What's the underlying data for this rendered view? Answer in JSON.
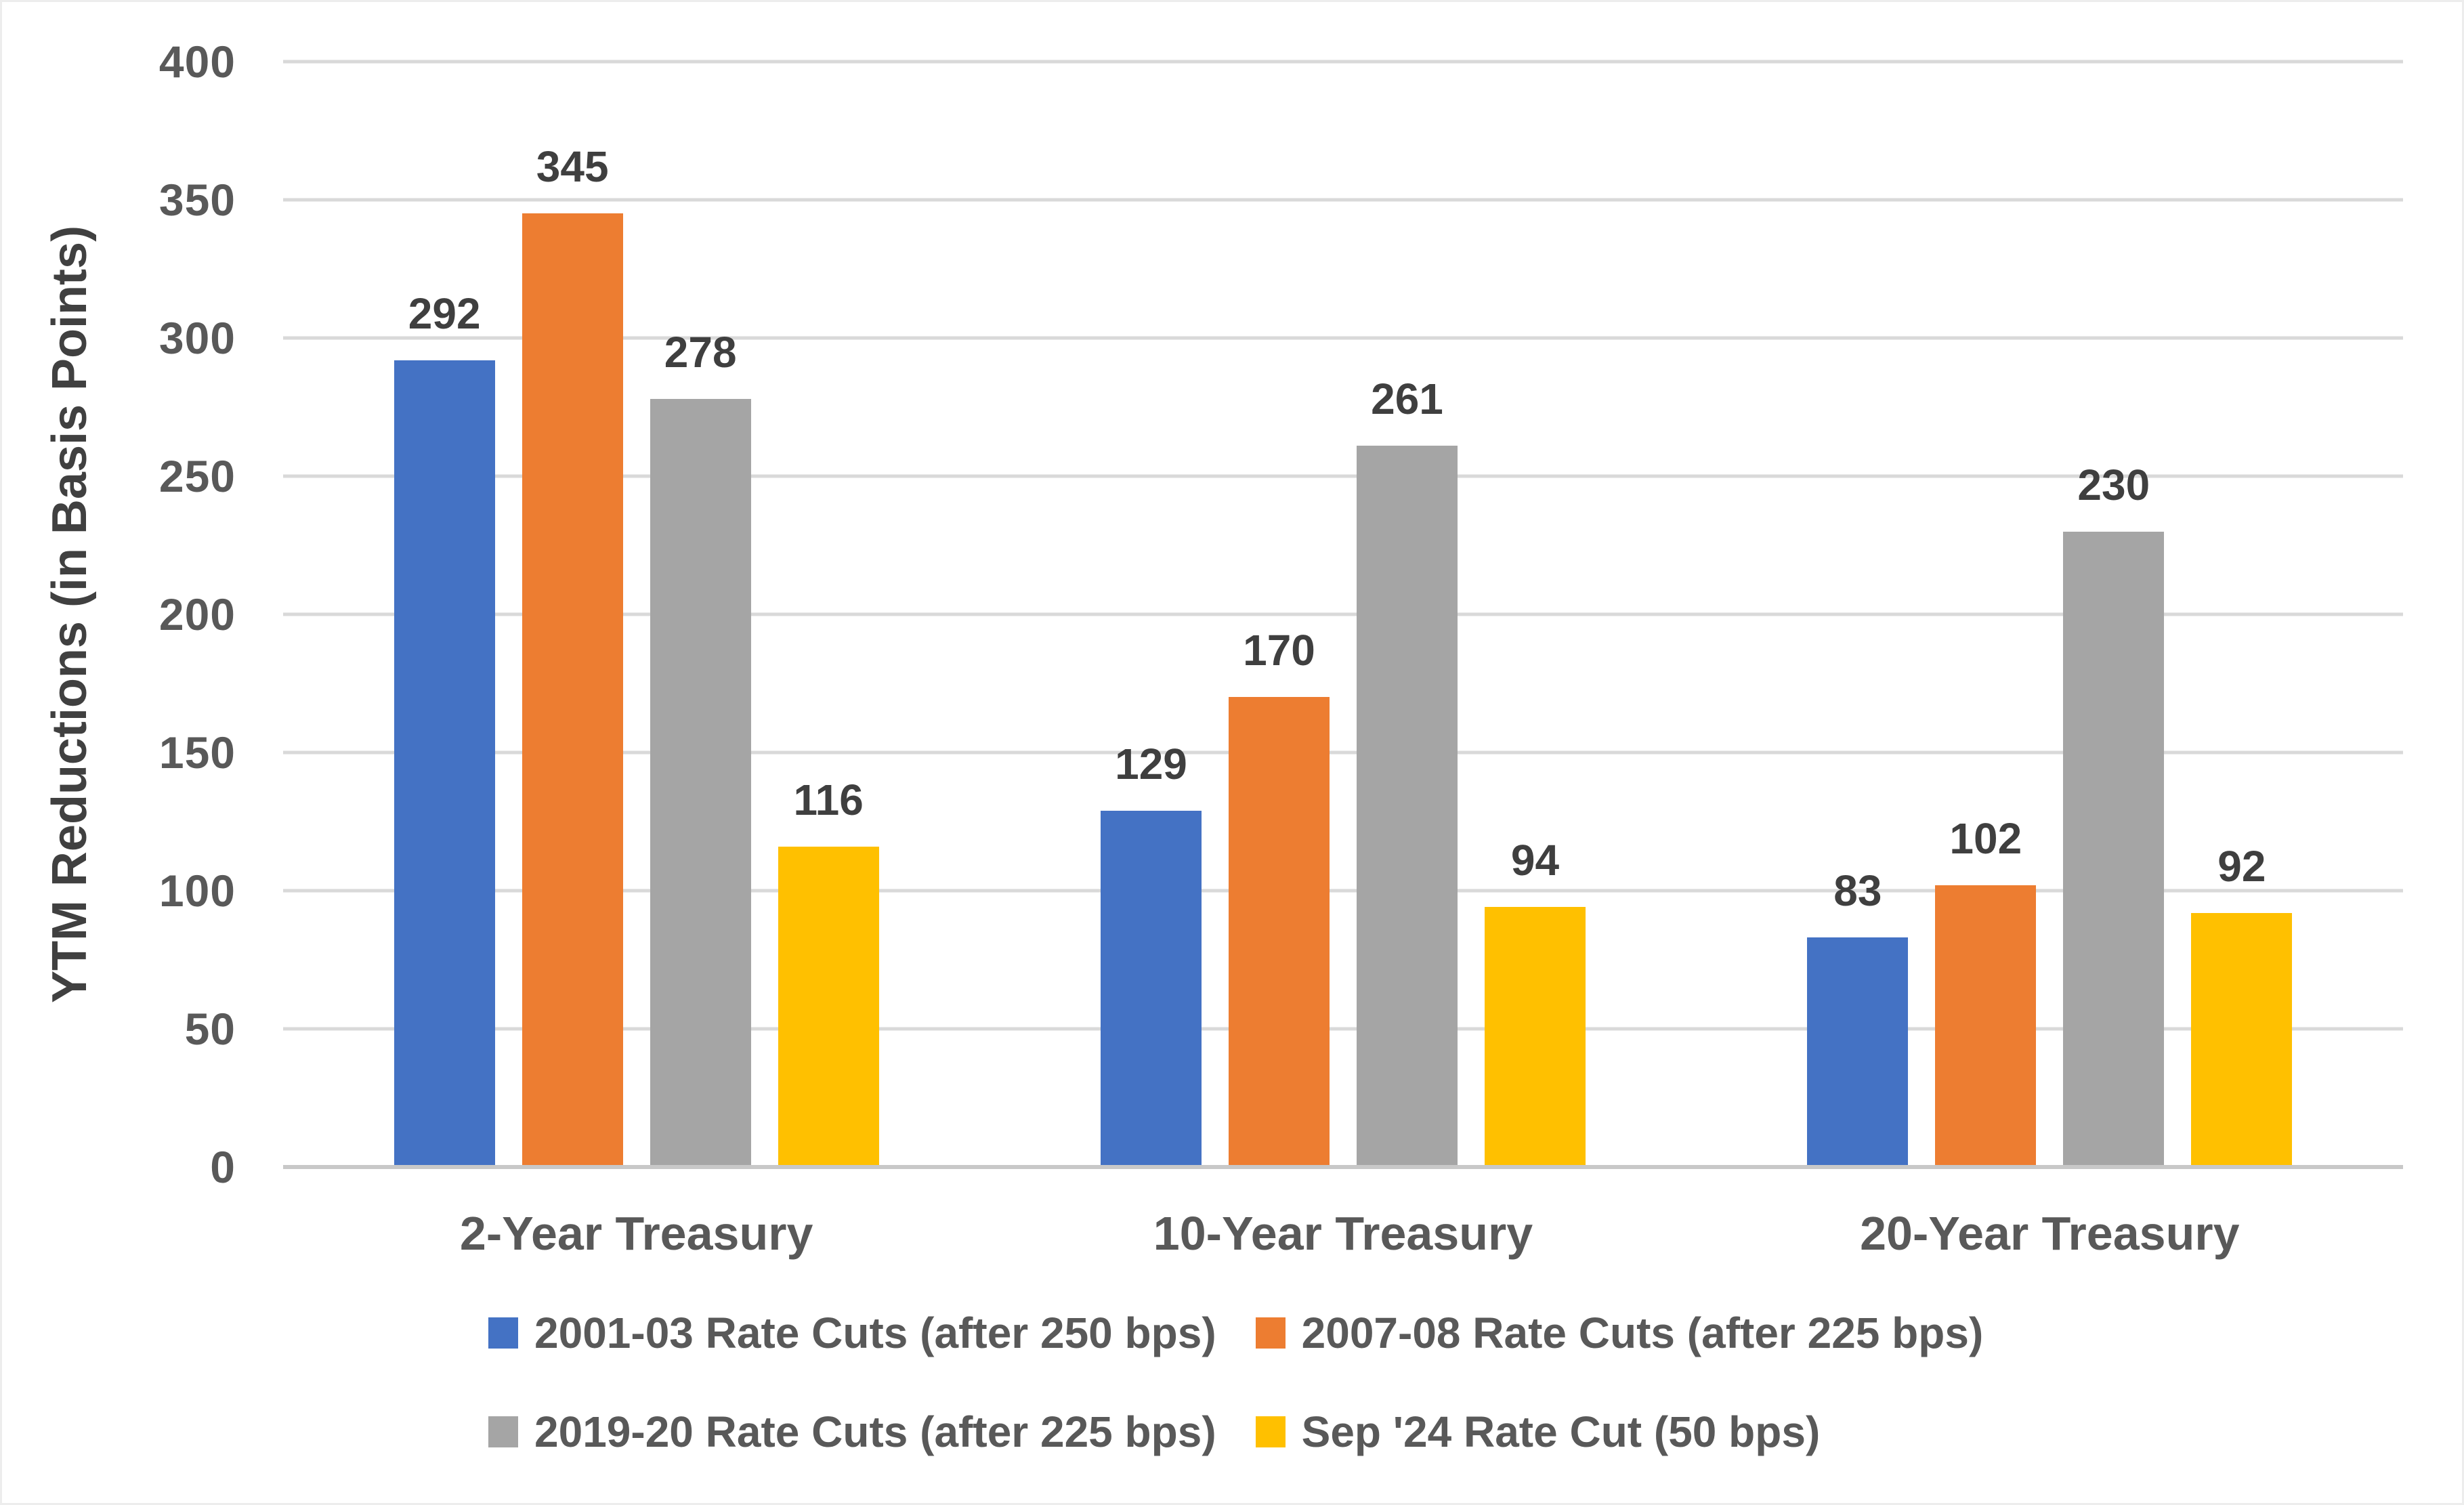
{
  "chart_data": {
    "type": "bar",
    "title": "",
    "xlabel": "",
    "ylabel": "YTM Reductions (in Basis Points)",
    "categories": [
      "2-Year Treasury",
      "10-Year Treasury",
      "20-Year Treasury"
    ],
    "series": [
      {
        "name": "2001-03 Rate Cuts (after 250 bps)",
        "color": "#4472C4",
        "values": [
          292,
          129,
          83
        ]
      },
      {
        "name": "2007-08 Rate Cuts (after 225 bps)",
        "color": "#ED7D31",
        "values": [
          345,
          170,
          102
        ]
      },
      {
        "name": "2019-20 Rate Cuts (after 225 bps)",
        "color": "#A5A5A5",
        "values": [
          278,
          261,
          230
        ]
      },
      {
        "name": "Sep '24 Rate Cut (50 bps)",
        "color": "#FFC000",
        "values": [
          116,
          94,
          92
        ]
      }
    ],
    "ylim": [
      0,
      400
    ],
    "ytick_interval": 50,
    "ytick_labels_top_to_bottom": [
      "400",
      "350",
      "300",
      "250",
      "200",
      "150",
      "100",
      "50",
      "0"
    ],
    "grid": true,
    "gridline_color": "#D9D9D9",
    "legend_position": "bottom",
    "legend_rows": 2
  }
}
